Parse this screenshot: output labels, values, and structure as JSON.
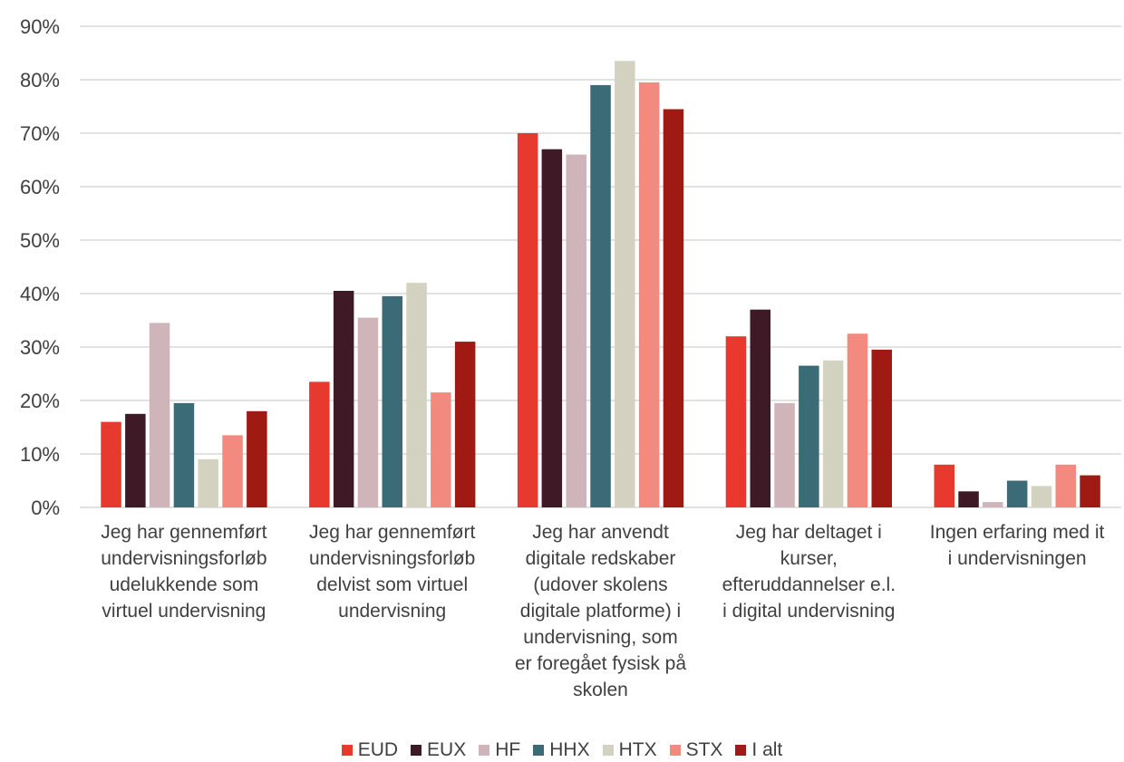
{
  "chart_data": {
    "type": "bar",
    "categories": [
      "Jeg har gennemført undervisningsforløb udelukkende som virtuel undervisning",
      "Jeg har gennemført undervisningsforløb delvist som virtuel undervisning",
      "Jeg har anvendt digitale redskaber (udover skolens digitale platforme) i undervisning, som er foregået fysisk på skolen",
      "Jeg har deltaget i kurser, efteruddannelser e.l. i digital undervisning",
      "Ingen erfaring med it i undervisningen"
    ],
    "category_lines": [
      [
        "Jeg har gennemført",
        "undervisningsforløb",
        "udelukkende som",
        "virtuel undervisning"
      ],
      [
        "Jeg har gennemført",
        "undervisningsforløb",
        "delvist som virtuel",
        "undervisning"
      ],
      [
        "Jeg har anvendt",
        "digitale redskaber",
        "(udover skolens",
        "digitale platforme) i",
        "undervisning, som",
        "er foregået fysisk på",
        "skolen"
      ],
      [
        "Jeg har deltaget i",
        "kurser,",
        "efteruddannelser e.l.",
        "i digital undervisning"
      ],
      [
        "Ingen erfaring med it",
        "i undervisningen"
      ]
    ],
    "series": [
      {
        "name": "EUD",
        "color": "#e8392e",
        "values": [
          16,
          23.5,
          70,
          32,
          8
        ]
      },
      {
        "name": "EUX",
        "color": "#3d1a26",
        "values": [
          17.5,
          40.5,
          67,
          37,
          3
        ]
      },
      {
        "name": "HF",
        "color": "#cfb5b9",
        "values": [
          34.5,
          35.5,
          66,
          19.5,
          1
        ]
      },
      {
        "name": "HHX",
        "color": "#3c6b78",
        "values": [
          19.5,
          39.5,
          79,
          26.5,
          5
        ]
      },
      {
        "name": "HTX",
        "color": "#d3d1bf",
        "values": [
          9,
          42,
          83.5,
          27.5,
          4
        ]
      },
      {
        "name": "STX",
        "color": "#f28a80",
        "values": [
          13.5,
          21.5,
          79.5,
          32.5,
          8
        ]
      },
      {
        "name": "I alt",
        "color": "#a01a14",
        "values": [
          18,
          31,
          74.5,
          29.5,
          6
        ]
      }
    ],
    "y_ticks": [
      "0%",
      "10%",
      "20%",
      "30%",
      "40%",
      "50%",
      "60%",
      "70%",
      "80%",
      "90%"
    ],
    "ylim": [
      0,
      90
    ],
    "y_unit": "%",
    "grid": true,
    "legend_position": "bottom"
  }
}
